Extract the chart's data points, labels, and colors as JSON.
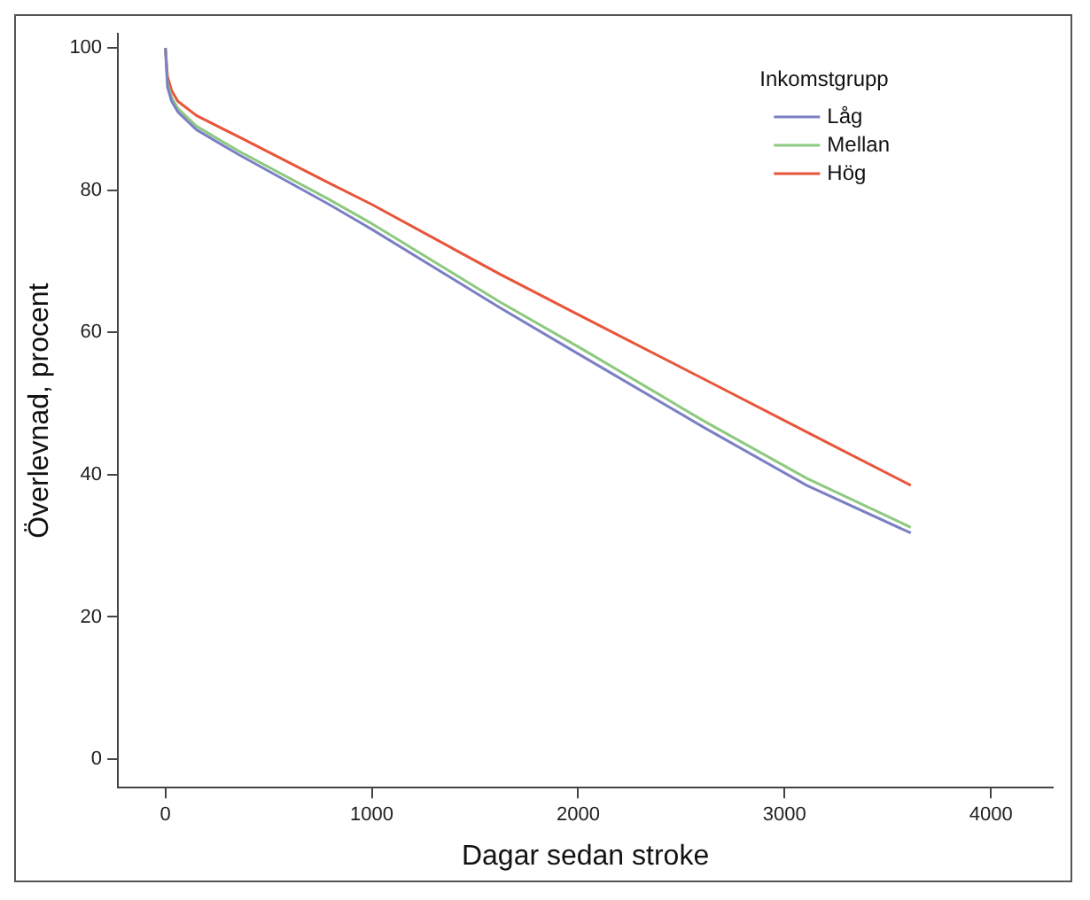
{
  "chart_data": {
    "type": "line",
    "xlabel": "Dagar sedan stroke",
    "ylabel": "Överlevnad, procent",
    "legend_title": "Inkomstgrupp",
    "x": [
      0,
      10,
      30,
      60,
      150,
      355,
      793,
      1000,
      1620,
      2000,
      2612,
      3107,
      3612
    ],
    "series": [
      {
        "name": "Låg",
        "color": "#7b7fc4",
        "values": [
          100,
          94.5,
          92.5,
          91,
          88.5,
          85,
          78,
          74.5,
          63.5,
          57,
          46.6,
          38.5,
          31.8
        ]
      },
      {
        "name": "Mellan",
        "color": "#8dc97f",
        "values": [
          100,
          95,
          93,
          91.5,
          89,
          85.5,
          78.7,
          75.3,
          64.3,
          58,
          47.5,
          39.5,
          32.6
        ]
      },
      {
        "name": "Hög",
        "color": "#e8553a",
        "values": [
          100,
          96,
          94,
          92.5,
          90.5,
          87.5,
          81,
          78,
          68.2,
          62.5,
          53.4,
          46,
          38.5
        ]
      }
    ],
    "xlim": [
      -230,
      4300
    ],
    "ylim": [
      -4,
      102
    ],
    "xticks": [
      0,
      1000,
      2000,
      3000,
      4000
    ],
    "yticks": [
      0,
      20,
      40,
      60,
      80,
      100
    ],
    "grid": false,
    "legend": "top right",
    "marker": "none",
    "line_style": "solid"
  }
}
